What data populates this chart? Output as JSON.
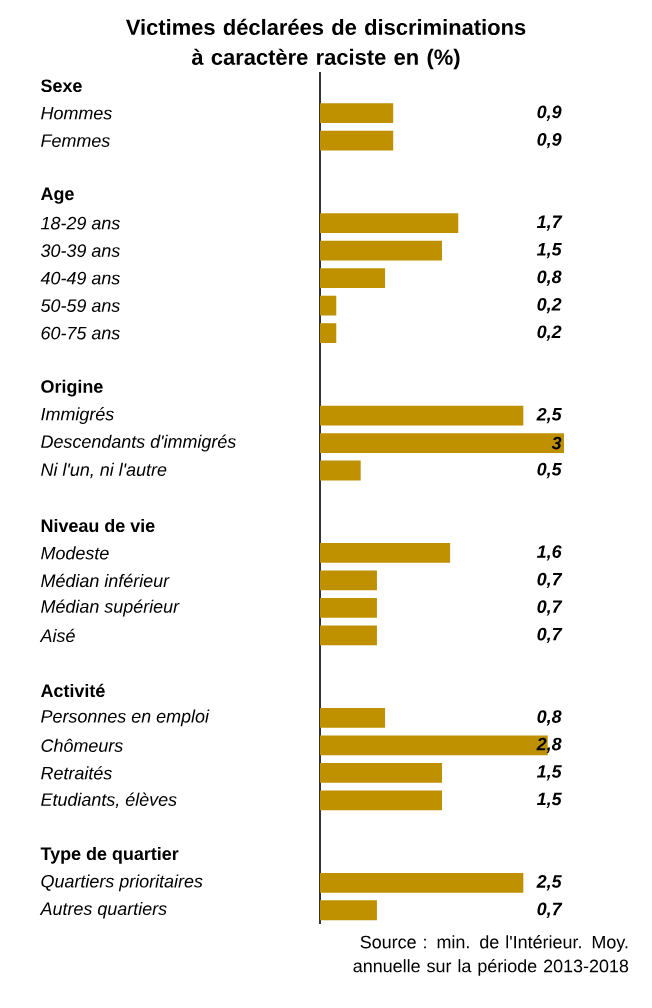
{
  "chart_data": {
    "type": "bar",
    "orientation": "horizontal",
    "title": "Victimes déclarées de discriminations à caractère raciste en (%)",
    "categories": [
      "Sexe",
      "Hommes",
      "Femmes",
      null,
      "Age",
      "18-29 ans",
      "30-39 ans",
      "40-49 ans",
      "50-59 ans",
      "60-75 ans",
      null,
      "Origine",
      "Immigrés",
      "Descendants d'immigrés",
      "Ni l'un, ni l'autre",
      null,
      "Niveau de vie",
      "Modeste",
      "Médian inférieur",
      "Médian supérieur",
      "Aisé",
      null,
      "Activité",
      "Personnes en emploi",
      "Chômeurs",
      "Retraités",
      "Etudiants, élèves",
      null,
      "Type de quartier",
      "Quartiers prioritaires",
      "Autres quartiers"
    ],
    "values": [
      null,
      0.9,
      0.9,
      null,
      null,
      1.7,
      1.5,
      0.8,
      0.2,
      0.2,
      null,
      null,
      2.5,
      3,
      0.5,
      null,
      null,
      1.6,
      0.7,
      0.7,
      0.7,
      null,
      null,
      0.8,
      2.8,
      1.5,
      1.5,
      null,
      null,
      2.5,
      0.7
    ],
    "value_labels": [
      null,
      "0,9",
      "0,9",
      null,
      null,
      "1,7",
      "1,5",
      "0,8",
      "0,2",
      "0,2",
      null,
      null,
      "2,5",
      "3",
      "0,5",
      null,
      null,
      "1,6",
      "0,7",
      "0,7",
      "0,7",
      null,
      null,
      "0,8",
      "2,8",
      "1,5",
      "1,5",
      null,
      null,
      "2,5",
      "0,7"
    ],
    "color": "#bf9000",
    "xlim": [
      0,
      3
    ],
    "tick_labels": "y",
    "annotations": [
      "Source : min. de l'Intérieur. Moy. annuelle sur la période 2013-2018"
    ]
  }
}
